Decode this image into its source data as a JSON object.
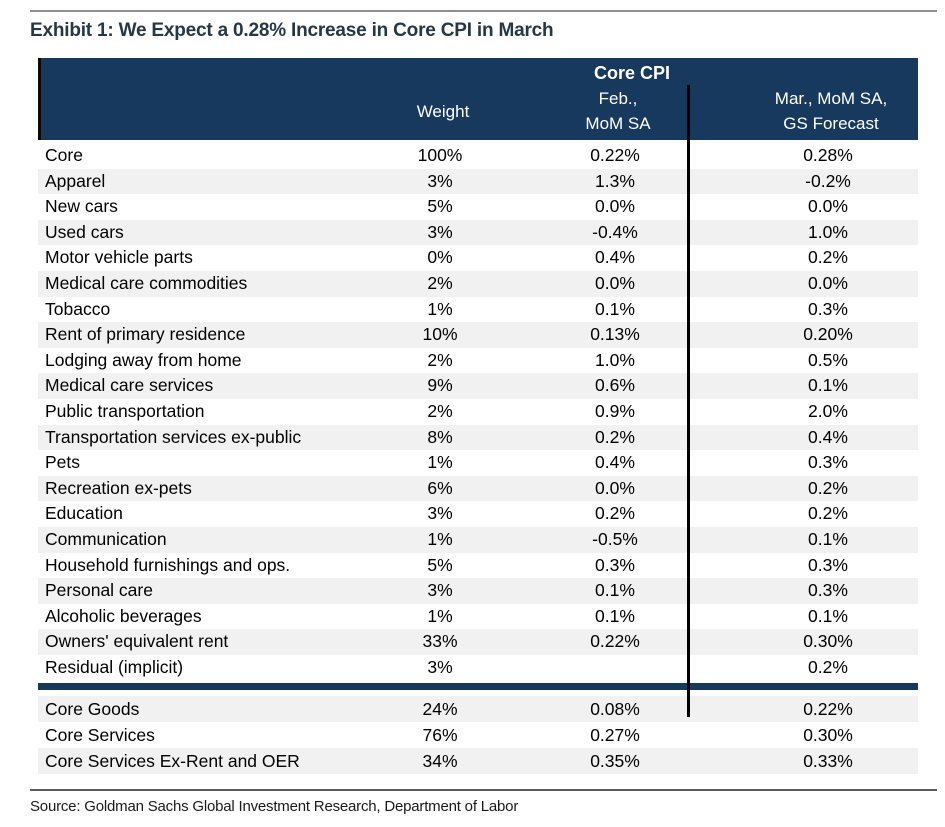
{
  "title": "Exhibit 1: We Expect a 0.28% Increase in Core CPI in March",
  "source": "Source: Goldman Sachs Global Investment Research, Department of Labor",
  "table_header": {
    "group_label": "Core CPI",
    "weight_label": "Weight",
    "feb_label_line1": "Feb.,",
    "feb_label_line2": "MoM SA",
    "mar_label_line1": "Mar., MoM SA,",
    "mar_label_line2": "GS Forecast"
  },
  "colors": {
    "header_bg": "#17395d",
    "divider": "#17395d",
    "row_alt_bg": "#f1f1f1",
    "title_text": "#253844",
    "body_text": "#000000",
    "header_text": "#ffffff",
    "vertical_line": "#000000",
    "top_rule": "#8f8f8f",
    "bottom_rule": "#5a5a5a"
  },
  "chart_data": {
    "type": "table",
    "title": "Exhibit 1: We Expect a 0.28% Increase in Core CPI in March",
    "group_header": "Core CPI",
    "columns": [
      "",
      "Weight",
      "Feb., MoM SA",
      "Mar., MoM SA, GS Forecast"
    ],
    "rows": [
      {
        "label": "Core",
        "weight": "100%",
        "feb": "0.22%",
        "mar": "0.28%"
      },
      {
        "label": "Apparel",
        "weight": "3%",
        "feb": "1.3%",
        "mar": "-0.2%"
      },
      {
        "label": "New cars",
        "weight": "5%",
        "feb": "0.0%",
        "mar": "0.0%"
      },
      {
        "label": "Used cars",
        "weight": "3%",
        "feb": "-0.4%",
        "mar": "1.0%"
      },
      {
        "label": "Motor vehicle parts",
        "weight": "0%",
        "feb": "0.4%",
        "mar": "0.2%"
      },
      {
        "label": "Medical care commodities",
        "weight": "2%",
        "feb": "0.0%",
        "mar": "0.0%"
      },
      {
        "label": "Tobacco",
        "weight": "1%",
        "feb": "0.1%",
        "mar": "0.3%"
      },
      {
        "label": "Rent of primary residence",
        "weight": "10%",
        "feb": "0.13%",
        "mar": "0.20%"
      },
      {
        "label": "Lodging away from home",
        "weight": "2%",
        "feb": "1.0%",
        "mar": "0.5%"
      },
      {
        "label": "Medical care services",
        "weight": "9%",
        "feb": "0.6%",
        "mar": "0.1%"
      },
      {
        "label": "Public transportation",
        "weight": "2%",
        "feb": "0.9%",
        "mar": "2.0%"
      },
      {
        "label": "Transportation services ex-public",
        "weight": "8%",
        "feb": "0.2%",
        "mar": "0.4%"
      },
      {
        "label": "Pets",
        "weight": "1%",
        "feb": "0.4%",
        "mar": "0.3%"
      },
      {
        "label": "Recreation ex-pets",
        "weight": "6%",
        "feb": "0.0%",
        "mar": "0.2%"
      },
      {
        "label": "Education",
        "weight": "3%",
        "feb": "0.2%",
        "mar": "0.2%"
      },
      {
        "label": "Communication",
        "weight": "1%",
        "feb": "-0.5%",
        "mar": "0.1%"
      },
      {
        "label": "Household furnishings and ops.",
        "weight": "5%",
        "feb": "0.3%",
        "mar": "0.3%"
      },
      {
        "label": "Personal care",
        "weight": "3%",
        "feb": "0.1%",
        "mar": "0.3%"
      },
      {
        "label": "Alcoholic beverages",
        "weight": "1%",
        "feb": "0.1%",
        "mar": "0.1%"
      },
      {
        "label": "Owners' equivalent rent",
        "weight": "33%",
        "feb": "0.22%",
        "mar": "0.30%"
      },
      {
        "label": "Residual (implicit)",
        "weight": "3%",
        "feb": "",
        "mar": "0.2%"
      }
    ],
    "summary_rows": [
      {
        "label": "Core Goods",
        "weight": "24%",
        "feb": "0.08%",
        "mar": "0.22%"
      },
      {
        "label": "Core Services",
        "weight": "76%",
        "feb": "0.27%",
        "mar": "0.30%"
      },
      {
        "label": "Core Services Ex-Rent and OER",
        "weight": "34%",
        "feb": "0.35%",
        "mar": "0.33%"
      }
    ],
    "source": "Source: Goldman Sachs Global Investment Research, Department of Labor"
  }
}
